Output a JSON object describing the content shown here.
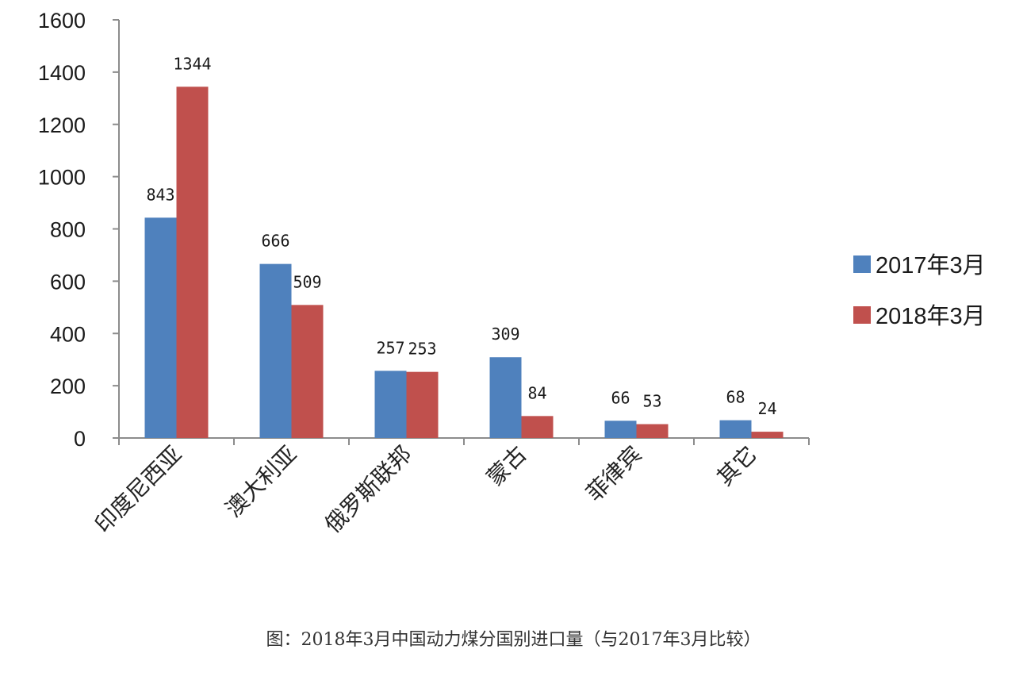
{
  "chart_data": {
    "type": "bar",
    "title": "",
    "xlabel": "",
    "ylabel": "",
    "ylim": [
      0,
      1600
    ],
    "yticks": [
      0,
      200,
      400,
      600,
      800,
      1000,
      1200,
      1400,
      1600
    ],
    "categories": [
      "印度尼西亚",
      "澳大利亚",
      "俄罗斯联邦",
      "蒙古",
      "菲律宾",
      "其它"
    ],
    "series": [
      {
        "name": "2017年3月",
        "color": "#4F81BD",
        "values": [
          843,
          666,
          257,
          309,
          66,
          68
        ]
      },
      {
        "name": "2018年3月",
        "color": "#C0504D",
        "values": [
          1344,
          509,
          253,
          84,
          53,
          24
        ]
      }
    ],
    "grid": false,
    "legend_position": "right"
  },
  "caption": "图：2018年3月中国动力煤分国别进口量（与2017年3月比较）"
}
